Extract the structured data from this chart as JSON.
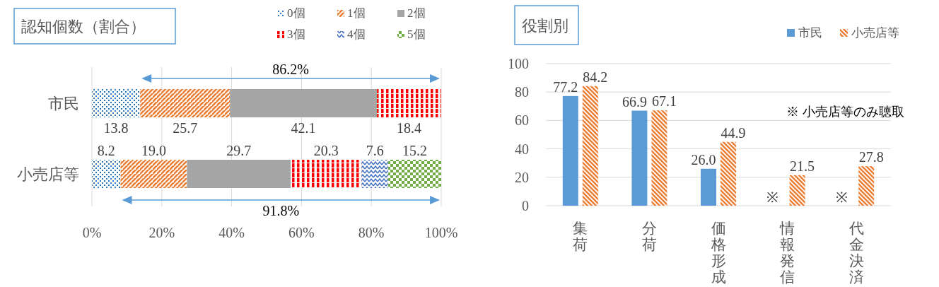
{
  "chart_data": [
    {
      "type": "bar",
      "orientation": "horizontal",
      "stacked": true,
      "title": "認知個数（割合）",
      "categories": [
        "市民",
        "小売店等"
      ],
      "series": [
        {
          "name": "0個",
          "color": "#2e75b6",
          "values": [
            13.8,
            8.2
          ],
          "value_labels": [
            "13.8",
            "8.2"
          ]
        },
        {
          "name": "1個",
          "color": "#ed7d31",
          "values": [
            25.7,
            19.0
          ],
          "value_labels": [
            "25.7",
            "19.0"
          ]
        },
        {
          "name": "2個",
          "color": "#a5a5a5",
          "values": [
            42.1,
            29.7
          ],
          "value_labels": [
            "42.1",
            "29.7"
          ]
        },
        {
          "name": "3個",
          "color": "#ff0000",
          "values": [
            18.4,
            20.3
          ],
          "value_labels": [
            "18.4",
            "20.3"
          ]
        },
        {
          "name": "4個",
          "color": "#4472c4",
          "values": [
            null,
            7.6
          ],
          "value_labels": [
            null,
            "7.6"
          ]
        },
        {
          "name": "5個",
          "color": "#70ad47",
          "values": [
            null,
            15.2
          ],
          "value_labels": [
            null,
            "15.2"
          ]
        }
      ],
      "xlim": [
        0,
        100
      ],
      "xticks": [
        {
          "value": 0,
          "label": "0%"
        },
        {
          "value": 20,
          "label": "20%"
        },
        {
          "value": 40,
          "label": "40%"
        },
        {
          "value": 60,
          "label": "60%"
        },
        {
          "value": 80,
          "label": "80%"
        },
        {
          "value": 100,
          "label": "100%"
        }
      ],
      "grid": "x",
      "legend": "top right",
      "annotations": [
        "86.2%",
        "91.8%"
      ]
    },
    {
      "type": "bar",
      "title": "役割別",
      "categories": [
        "集荷",
        "分荷",
        "価格形成",
        "情報発信",
        "代金決済"
      ],
      "series": [
        {
          "name": "市民",
          "color": "#5b9bd5",
          "values": [
            77.2,
            66.9,
            26.0,
            null,
            null
          ],
          "value_labels": [
            "77.2",
            "66.9",
            "26.0",
            "※",
            "※"
          ]
        },
        {
          "name": "小売店等",
          "color": "#ed7d31",
          "values": [
            84.2,
            67.1,
            44.9,
            21.5,
            27.8
          ],
          "value_labels": [
            "84.2",
            "67.1",
            "44.9",
            "21.5",
            "27.8"
          ]
        }
      ],
      "ylim": [
        0,
        100
      ],
      "yticks": [
        0,
        20,
        40,
        60,
        80,
        100
      ],
      "grid": "y",
      "legend": "top right",
      "annotations": [
        "※ 小売店等のみ聴取"
      ]
    }
  ]
}
